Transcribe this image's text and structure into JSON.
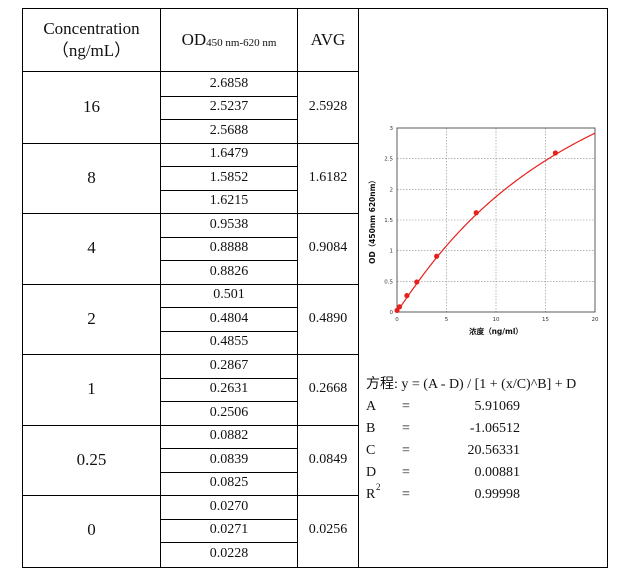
{
  "table": {
    "headers": {
      "concentration_line1": "Concentration",
      "concentration_line2": "（ng/mL）",
      "od_main": "OD",
      "od_sub": "450 nm-620 nm",
      "avg": "AVG"
    },
    "groups": [
      {
        "conc": "16",
        "values": [
          "2.6858",
          "2.5237",
          "2.5688"
        ],
        "avg": "2.5928"
      },
      {
        "conc": "8",
        "values": [
          "1.6479",
          "1.5852",
          "1.6215"
        ],
        "avg": "1.6182"
      },
      {
        "conc": "4",
        "values": [
          "0.9538",
          "0.8888",
          "0.8826"
        ],
        "avg": "0.9084"
      },
      {
        "conc": "2",
        "values": [
          "0.501",
          "0.4804",
          "0.4855"
        ],
        "avg": "0.4890"
      },
      {
        "conc": "1",
        "values": [
          "0.2867",
          "0.2631",
          "0.2506"
        ],
        "avg": "0.2668"
      },
      {
        "conc": "0.25",
        "values": [
          "0.0882",
          "0.0839",
          "0.0825"
        ],
        "avg": "0.0849"
      },
      {
        "conc": "0",
        "values": [
          "0.0270",
          "0.0271",
          "0.0228"
        ],
        "avg": "0.0256"
      }
    ]
  },
  "fit": {
    "equation": "方程: y = (A - D) / [1 + (x/C)^B] + D",
    "params": [
      {
        "name": "A",
        "sup": "",
        "eq": "=",
        "value": "5.91069"
      },
      {
        "name": "B",
        "sup": "",
        "eq": "=",
        "value": "-1.06512"
      },
      {
        "name": "C",
        "sup": "",
        "eq": "=",
        "value": "20.56331"
      },
      {
        "name": "D",
        "sup": "",
        "eq": "=",
        "value": "0.00881"
      },
      {
        "name": "R",
        "sup": "2",
        "eq": "=",
        "value": "0.99998"
      }
    ]
  },
  "chart_data": {
    "type": "scatter",
    "xlabel": "浓度（ng/ml）",
    "ylabel": "OD（450nm 620nm）",
    "xlim": [
      0,
      20
    ],
    "ylim": [
      0,
      3
    ],
    "xticks": [
      "0",
      "5",
      "10",
      "15",
      "20"
    ],
    "yticks": [
      "0",
      "0.5",
      "1",
      "1.5",
      "2",
      "2.5",
      "3"
    ],
    "grid": true,
    "point_color": "#e8201c",
    "curve_color": "#e8201c",
    "series": [
      {
        "x": [
          0,
          0.25,
          1,
          2,
          4,
          8,
          16
        ],
        "y": [
          0.0256,
          0.0849,
          0.2668,
          0.489,
          0.9084,
          1.6182,
          2.5928
        ]
      }
    ],
    "fit": {
      "A": 5.91069,
      "B": -1.06512,
      "C": 20.56331,
      "D": 0.00881,
      "x_range": [
        0,
        20
      ]
    }
  }
}
